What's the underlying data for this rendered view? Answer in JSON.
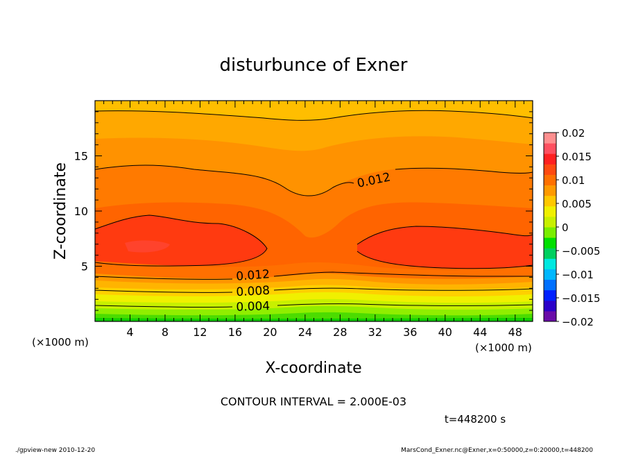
{
  "chart_data": {
    "type": "contour",
    "title": "disturbunce of Exner",
    "xlabel": "X-coordinate",
    "ylabel": "Z-coordinate",
    "x_unit": "(×1000 m)",
    "y_unit": "(×1000 m)",
    "xlim": [
      0,
      50
    ],
    "ylim": [
      0,
      20
    ],
    "x_ticks": [
      4,
      8,
      12,
      16,
      20,
      24,
      28,
      32,
      36,
      40,
      44,
      48
    ],
    "y_ticks": [
      5,
      10,
      15
    ],
    "contour_labels": [
      {
        "text": "0.012",
        "x": 32,
        "z": 13
      },
      {
        "text": "0.012",
        "x": 18,
        "z": 4.3
      },
      {
        "text": "0.008",
        "x": 18,
        "z": 2.7
      },
      {
        "text": "0.004",
        "x": 18,
        "z": 1.3
      }
    ],
    "colorbar": {
      "levels": [
        -0.02,
        -0.015,
        -0.01,
        -0.005,
        0,
        0.005,
        0.01,
        0.015,
        0.02
      ],
      "labels": [
        "0.02",
        "0.015",
        "0.01",
        "0.005",
        "0",
        "−0.005",
        "−0.01",
        "−0.015",
        "−0.02"
      ],
      "colors": [
        "#6a0ca8",
        "#2a00c8",
        "#0020ff",
        "#0070ff",
        "#00b8ff",
        "#00e8e0",
        "#00d060",
        "#00e000",
        "#7aee00",
        "#c8f000",
        "#f0f000",
        "#ffc800",
        "#ff9a00",
        "#ff7000",
        "#ff4a10",
        "#ff2020",
        "#ff5060",
        "#ff9090"
      ]
    },
    "grid": false
  },
  "annotations": {
    "contour_interval": "CONTOUR INTERVAL = 2.000E-03",
    "time": "t=448200 s"
  },
  "footer": {
    "left": "./gpview-new  2010-12-20",
    "right": "MarsCond_Exner.nc@Exner,x=0:50000,z=0:20000,t=448200"
  }
}
